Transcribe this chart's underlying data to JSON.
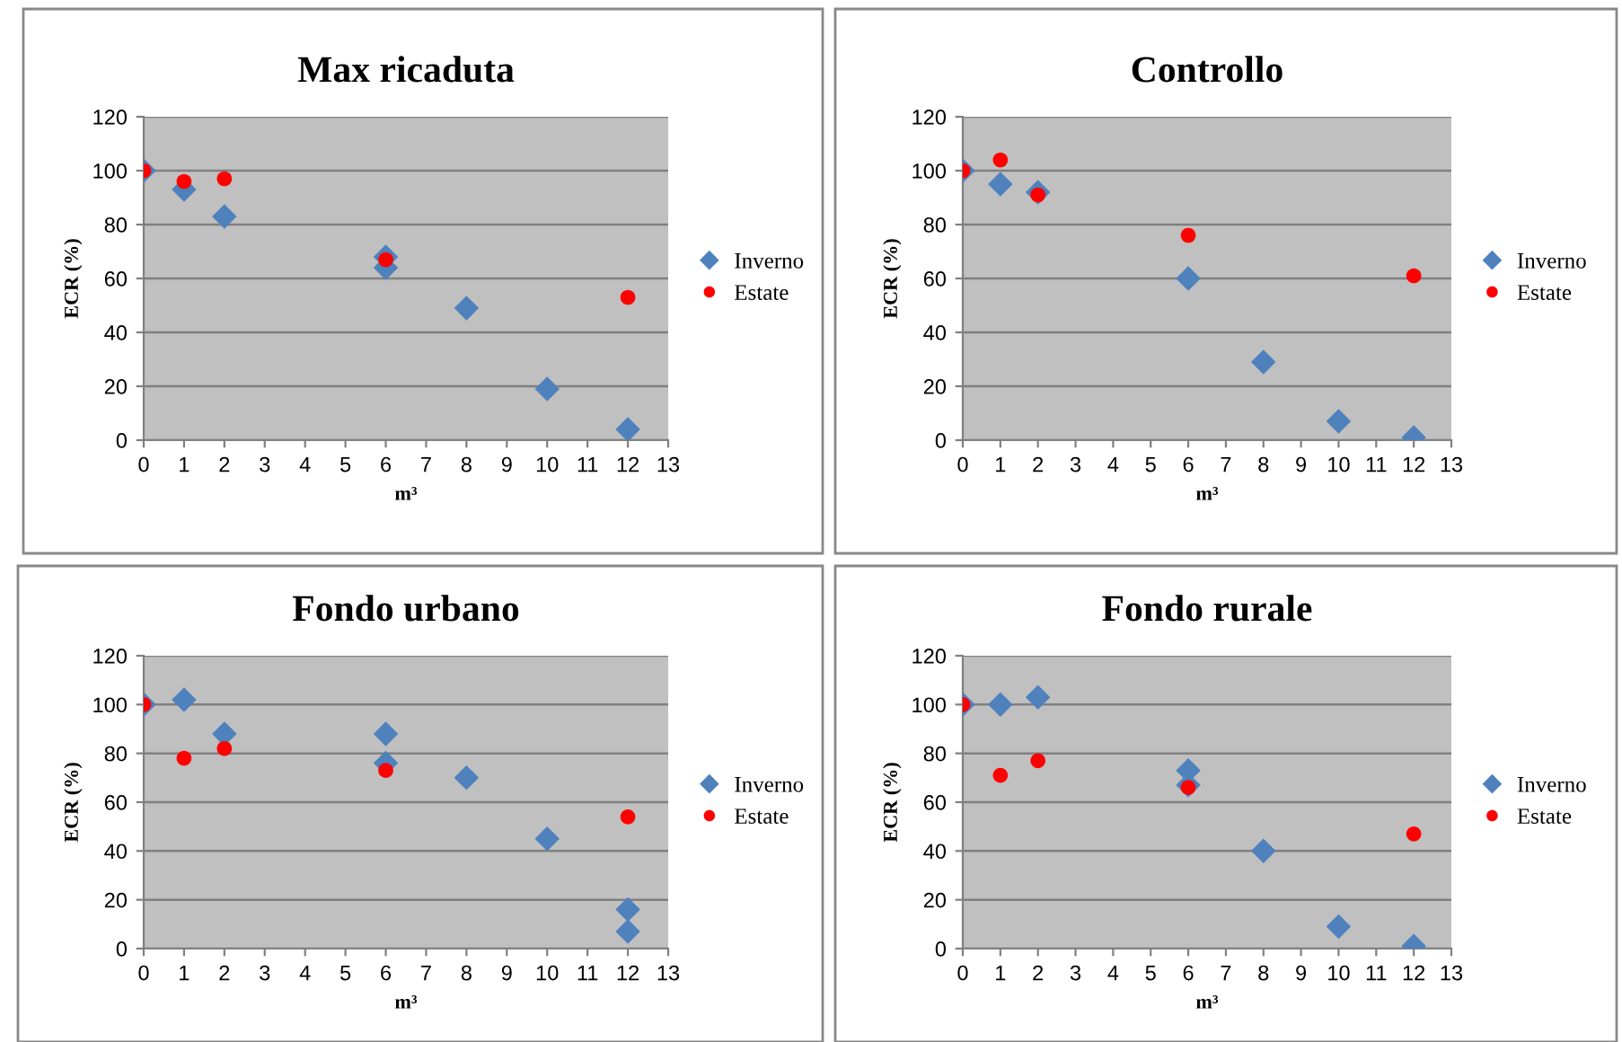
{
  "chart_data": [
    {
      "type": "scatter",
      "title": "Max ricaduta",
      "xlabel": "m³",
      "ylabel": "ECR (%)",
      "xlim": [
        0,
        13
      ],
      "xticks": [
        0,
        1,
        2,
        3,
        4,
        5,
        6,
        7,
        8,
        9,
        10,
        11,
        12,
        13
      ],
      "ylim": [
        0,
        120
      ],
      "yticks": [
        0,
        20,
        40,
        60,
        80,
        100,
        120
      ],
      "grid": "y",
      "legend": "right",
      "series": [
        {
          "name": "Inverno",
          "color": "#4f81bd",
          "marker": "diamond",
          "x": [
            0,
            1,
            2,
            6,
            6,
            8,
            10,
            12
          ],
          "values": [
            100,
            93,
            83,
            68,
            64,
            49,
            19,
            4
          ]
        },
        {
          "name": "Estate",
          "color": "#ff0000",
          "marker": "circle",
          "x": [
            0,
            1,
            2,
            6,
            12
          ],
          "values": [
            100,
            96,
            97,
            67,
            53
          ]
        }
      ]
    },
    {
      "type": "scatter",
      "title": "Controllo",
      "xlabel": "m³",
      "ylabel": "ECR (%)",
      "xlim": [
        0,
        13
      ],
      "xticks": [
        0,
        1,
        2,
        3,
        4,
        5,
        6,
        7,
        8,
        9,
        10,
        11,
        12,
        13
      ],
      "ylim": [
        0,
        120
      ],
      "yticks": [
        0,
        20,
        40,
        60,
        80,
        100,
        120
      ],
      "grid": "y",
      "legend": "right",
      "series": [
        {
          "name": "Inverno",
          "color": "#4f81bd",
          "marker": "diamond",
          "x": [
            0,
            1,
            2,
            6,
            8,
            10,
            12
          ],
          "values": [
            100,
            95,
            92,
            60,
            29,
            7,
            1
          ]
        },
        {
          "name": "Estate",
          "color": "#ff0000",
          "marker": "circle",
          "x": [
            0,
            1,
            2,
            6,
            12
          ],
          "values": [
            100,
            104,
            91,
            76,
            61
          ]
        }
      ]
    },
    {
      "type": "scatter",
      "title": "Fondo urbano",
      "xlabel": "m³",
      "ylabel": "ECR (%)",
      "xlim": [
        0,
        13
      ],
      "xticks": [
        0,
        1,
        2,
        3,
        4,
        5,
        6,
        7,
        8,
        9,
        10,
        11,
        12,
        13
      ],
      "ylim": [
        0,
        120
      ],
      "yticks": [
        0,
        20,
        40,
        60,
        80,
        100,
        120
      ],
      "grid": "y",
      "legend": "right",
      "series": [
        {
          "name": "Inverno",
          "color": "#4f81bd",
          "marker": "diamond",
          "x": [
            0,
            1,
            2,
            6,
            6,
            8,
            10,
            12,
            12
          ],
          "values": [
            100,
            102,
            88,
            88,
            76,
            70,
            45,
            16,
            7
          ]
        },
        {
          "name": "Estate",
          "color": "#ff0000",
          "marker": "circle",
          "x": [
            0,
            1,
            2,
            6,
            12
          ],
          "values": [
            100,
            78,
            82,
            73,
            54
          ]
        }
      ]
    },
    {
      "type": "scatter",
      "title": "Fondo rurale",
      "xlabel": "m³",
      "ylabel": "ECR (%)",
      "xlim": [
        0,
        13
      ],
      "xticks": [
        0,
        1,
        2,
        3,
        4,
        5,
        6,
        7,
        8,
        9,
        10,
        11,
        12,
        13
      ],
      "ylim": [
        0,
        120
      ],
      "yticks": [
        0,
        20,
        40,
        60,
        80,
        100,
        120
      ],
      "grid": "y",
      "legend": "right",
      "series": [
        {
          "name": "Inverno",
          "color": "#4f81bd",
          "marker": "diamond",
          "x": [
            0,
            1,
            2,
            6,
            6,
            8,
            10,
            12
          ],
          "values": [
            100,
            100,
            103,
            73,
            67,
            40,
            9,
            1
          ]
        },
        {
          "name": "Estate",
          "color": "#ff0000",
          "marker": "circle",
          "x": [
            0,
            1,
            2,
            6,
            12
          ],
          "values": [
            100,
            71,
            77,
            66,
            47
          ]
        }
      ]
    }
  ]
}
